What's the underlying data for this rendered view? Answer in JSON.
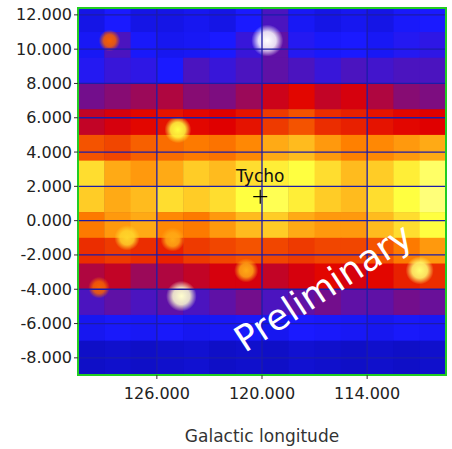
{
  "chart_data": {
    "type": "heatmap",
    "x_label": "Galactic longitude",
    "xlim": [
      130.5,
      109.5
    ],
    "ylim": [
      -9,
      12.4
    ],
    "xticks": [
      {
        "value": 126,
        "label": "126.000"
      },
      {
        "value": 120,
        "label": "120.000"
      },
      {
        "value": 114,
        "label": "114.000"
      }
    ],
    "yticks": [
      {
        "value": 12,
        "label": "12.000"
      },
      {
        "value": 10,
        "label": "10.000"
      },
      {
        "value": 8,
        "label": "8.000"
      },
      {
        "value": 6,
        "label": "6.000"
      },
      {
        "value": 4,
        "label": "4.000"
      },
      {
        "value": 2,
        "label": "2.000"
      },
      {
        "value": 0,
        "label": "0.000"
      },
      {
        "value": -2,
        "label": "-2.000"
      },
      {
        "value": -4,
        "label": "-4.000"
      },
      {
        "value": -6,
        "label": "-6.000"
      },
      {
        "value": -8,
        "label": "-8.000"
      }
    ],
    "grid": true,
    "x_bins": [
      130.5,
      129,
      127.5,
      126,
      124.5,
      123,
      121.5,
      120,
      118.5,
      117,
      115.5,
      114,
      112.5,
      111,
      109.5
    ],
    "y_bins": [
      12.4,
      11,
      9.5,
      8,
      6.5,
      5,
      3.5,
      2,
      0.5,
      -1,
      -2.5,
      -4,
      -5.5,
      -7,
      -9
    ],
    "zlim": [
      0,
      10
    ],
    "cells": [
      [
        2,
        2.5,
        2,
        2,
        2.2,
        2,
        2.5,
        3,
        2.3,
        2,
        2.2,
        2,
        2.4,
        2.5
      ],
      [
        2.3,
        3,
        2.4,
        2.2,
        2.3,
        2.5,
        2.8,
        3.2,
        2.6,
        2.4,
        2.5,
        2.3,
        2.6,
        2.7
      ],
      [
        2.6,
        2.8,
        2.7,
        2.5,
        3,
        2.8,
        3,
        3.2,
        3,
        2.8,
        3,
        2.9,
        3,
        3
      ],
      [
        3.4,
        3.6,
        3.8,
        4,
        3.6,
        3.5,
        3.8,
        4.3,
        4.6,
        4.2,
        4.4,
        4,
        3.6,
        3.5
      ],
      [
        4.2,
        4.4,
        4.6,
        4.8,
        4.6,
        4.5,
        4.8,
        5.4,
        5.8,
        5.2,
        5,
        4.8,
        4.6,
        4.5
      ],
      [
        5.8,
        5.6,
        6,
        6.2,
        6.4,
        6.3,
        6.6,
        7,
        7.2,
        6.8,
        6.5,
        6.6,
        6.8,
        7
      ],
      [
        7.6,
        7,
        6.8,
        7,
        7.4,
        7.2,
        7.6,
        7.8,
        8,
        7.6,
        7.2,
        7.4,
        7.8,
        8.4
      ],
      [
        7.4,
        7,
        7.2,
        7.6,
        7.4,
        7.6,
        8,
        8.2,
        7.8,
        7.4,
        7.2,
        7.6,
        8,
        8.6
      ],
      [
        6.4,
        6.8,
        7,
        6.6,
        6.4,
        6.8,
        7.2,
        7.4,
        7,
        6.8,
        6.8,
        7.2,
        7.6,
        8
      ],
      [
        5.2,
        5.4,
        5.2,
        5,
        5.4,
        5.6,
        5.8,
        5.6,
        5.4,
        5.6,
        5.6,
        5.8,
        6.4,
        6.8
      ],
      [
        4,
        4.2,
        3.8,
        4,
        4.2,
        4.4,
        4.4,
        4.2,
        4.4,
        4.6,
        4.4,
        4.6,
        5,
        5.2
      ],
      [
        3,
        3.2,
        3,
        3.2,
        3,
        3.2,
        3.4,
        3,
        3.2,
        3.4,
        3.2,
        3.2,
        3.4,
        3.3
      ],
      [
        2.2,
        2.4,
        2.3,
        2.4,
        2.2,
        2.3,
        2.4,
        2.2,
        2.5,
        2.4,
        2.3,
        2.2,
        2.4,
        2.3
      ],
      [
        1.4,
        1.5,
        1.4,
        1.5,
        1.6,
        1.4,
        1.5,
        1.4,
        1.6,
        1.5,
        1.4,
        1.5,
        1.4,
        1.5
      ]
    ],
    "sources": {
      "x": [
        119.7,
        128.7,
        124.8,
        124.6,
        125.1,
        120.9,
        129.3,
        111,
        127.7
      ],
      "y": [
        10.5,
        10.5,
        5.3,
        -4.4,
        -1.1,
        -2.9,
        -3.9,
        -2.9,
        -1
      ],
      "values": [
        10,
        6,
        8,
        9.5,
        7,
        7,
        6,
        8.5,
        7.5
      ]
    },
    "points": {
      "labels": [
        "Tycho"
      ],
      "x": [
        120.1
      ],
      "y": [
        1.4
      ]
    },
    "annotations": [
      "Preliminary"
    ]
  }
}
